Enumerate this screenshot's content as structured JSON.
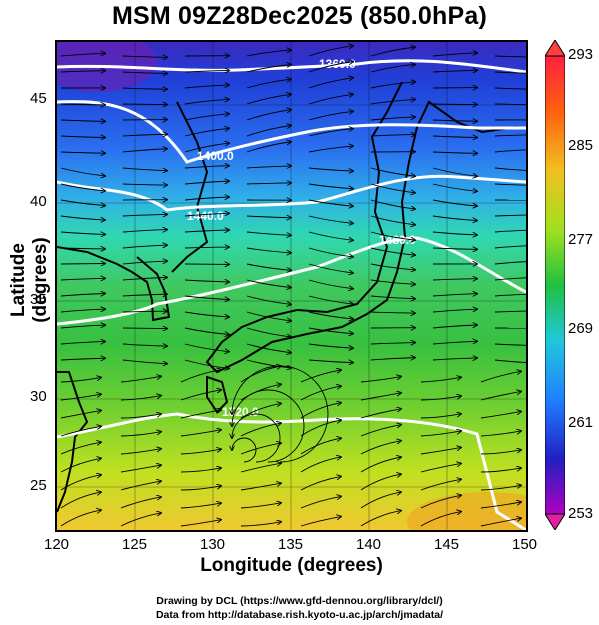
{
  "title": "MSM 09Z28Dec2025 (850.0hPa)",
  "axes": {
    "xlabel": "Longitude (degrees)",
    "ylabel": "Latitude  (degrees)",
    "xticks": [
      "120",
      "125",
      "130",
      "135",
      "140",
      "145",
      "150"
    ],
    "yticks": [
      "45",
      "40",
      "35",
      "30",
      "25"
    ]
  },
  "colorbar": {
    "labels": [
      "293",
      "285",
      "277",
      "269",
      "261",
      "253"
    ],
    "colors": [
      "#b000c0",
      "#2020c0",
      "#2080ff",
      "#20c8d8",
      "#20c040",
      "#a0e020",
      "#f0c020",
      "#ff6010",
      "#ff2040"
    ]
  },
  "contours": [
    "1360.0",
    "1400.0",
    "1440.0",
    "1480.0",
    "1520.0"
  ],
  "footer": {
    "line1": "Drawing by DCL (https://www.gfd-dennou.org/library/dcl/)",
    "line2": "Data from http://database.rish.kyoto-u.ac.jp/arch/jmadata/"
  }
}
